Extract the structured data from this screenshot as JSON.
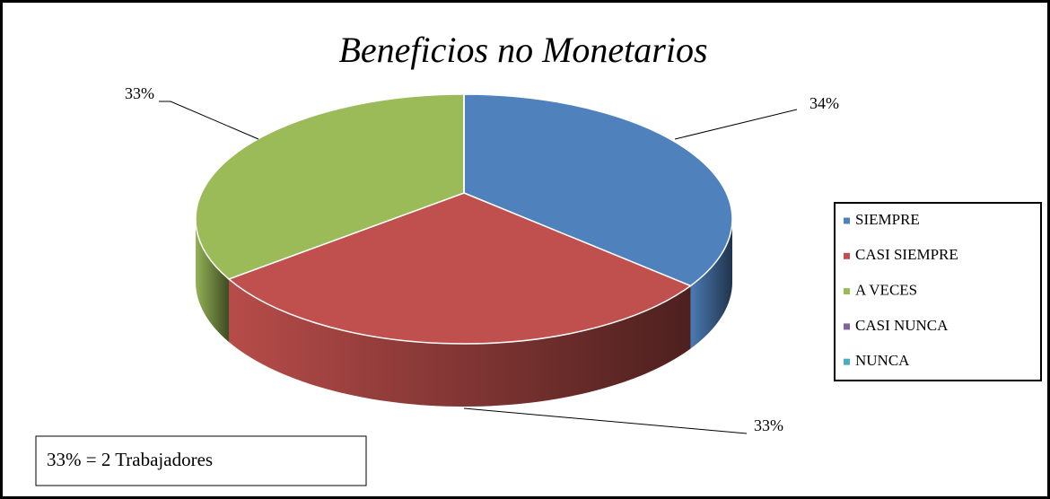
{
  "chart_data": {
    "type": "pie",
    "title": "Beneficios no Monetarios",
    "categories": [
      "SIEMPRE",
      "CASI SIEMPRE",
      "A VECES",
      "CASI NUNCA",
      "NUNCA"
    ],
    "values": [
      34,
      33,
      33,
      0,
      0
    ],
    "value_labels": [
      "34%",
      "33%",
      "33%",
      null,
      null
    ],
    "colors": [
      "#4f81bd",
      "#c0504d",
      "#9bbb59",
      "#8064a2",
      "#4bacc6"
    ],
    "legend": "right",
    "annotation": "33% = 2 Trabajadores"
  }
}
